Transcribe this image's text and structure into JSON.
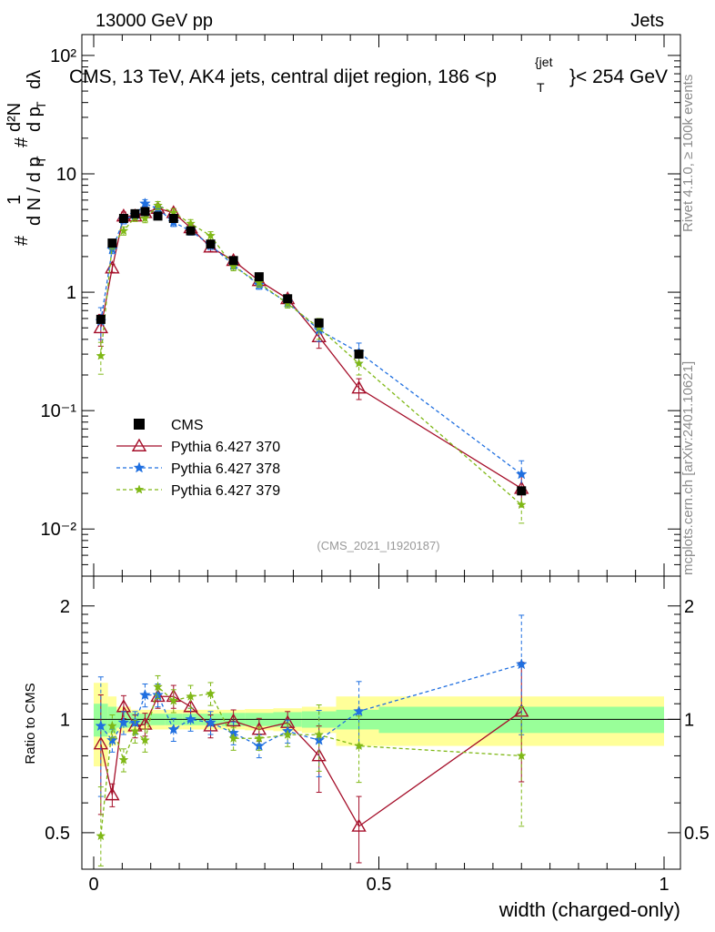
{
  "header": {
    "left": "13000 GeV pp",
    "right": "Jets"
  },
  "title": "CMS, 13 TeV, AK4 jets, central dijet region, 186 <p",
  "title_super": "{jet",
  "title_sub": "T",
  "title_tail": "}< 254 GeV",
  "ylabel": "# 1/dN/dpT # dpT d²N/dλ",
  "ylabel_parts": {
    "hash": "#",
    "one": "1",
    "dn": "d N / d p",
    "t": "T",
    "d2n": "d²N",
    "dpt": "d p",
    "dlambda": "dλ"
  },
  "side_rivet": "Rivet 4.1.0, ≥ 100k events",
  "side_mcplots": "mcplots.cern.ch [arXiv:2401.10621]",
  "watermark": "(CMS_2021_I1920187)",
  "ratio_ylabel": "Ratio to CMS",
  "xlabel": "width (charged-only)",
  "colors": {
    "cms": "#000000",
    "p370": "#a50f2a",
    "p378": "#1f6fe0",
    "p379": "#7fb816",
    "band_inner": "#99ff99",
    "band_outer": "#ffff99"
  },
  "chart_data": {
    "type": "scatter",
    "title": "CMS, 13 TeV, AK4 jets, central dijet region, 186 <pT{jet}< 254 GeV",
    "xlabel": "width (charged-only)",
    "ylabel": "1/dN/dpT dpT d²N/dλ",
    "xlim": [
      0,
      1
    ],
    "ylim": [
      0.004,
      150
    ],
    "yscale": "log",
    "ratio_ylim": [
      0.4,
      2.4
    ],
    "x_ticks": [
      "0",
      "0.5",
      "1"
    ],
    "x_tick_values": [
      0,
      0.5,
      1
    ],
    "y_ticks": [
      "10⁻²",
      "10⁻¹",
      "1",
      "10",
      "10²"
    ],
    "y_tick_values": [
      0.01,
      0.1,
      1,
      10,
      100
    ],
    "ratio_ticks": [
      "0.5",
      "1",
      "2"
    ],
    "ratio_tick_values": [
      0.5,
      1,
      2
    ],
    "x": [
      0.0125,
      0.0325,
      0.0525,
      0.0725,
      0.09,
      0.1125,
      0.14,
      0.17,
      0.205,
      0.245,
      0.29,
      0.34,
      0.395,
      0.465,
      0.75
    ],
    "bin_edges": [
      0,
      0.025,
      0.04,
      0.065,
      0.08,
      0.1,
      0.125,
      0.155,
      0.185,
      0.225,
      0.265,
      0.315,
      0.365,
      0.425,
      0.5,
      1.0
    ],
    "cms": [
      0.59,
      2.6,
      4.2,
      4.6,
      4.8,
      4.4,
      4.2,
      3.3,
      2.55,
      1.85,
      1.35,
      0.88,
      0.55,
      0.3,
      0.021
    ],
    "cms_band_inner": [
      0.1,
      0.08,
      0.05,
      0.04,
      0.035,
      0.035,
      0.035,
      0.035,
      0.035,
      0.04,
      0.04,
      0.045,
      0.05,
      0.06,
      0.08
    ],
    "cms_band_outer": [
      0.25,
      0.15,
      0.08,
      0.06,
      0.06,
      0.06,
      0.06,
      0.06,
      0.06,
      0.06,
      0.065,
      0.07,
      0.08,
      0.15,
      0.15
    ],
    "series": [
      {
        "name": "CMS",
        "style": "marker"
      },
      {
        "name": "Pythia 6.427 370",
        "values": [
          0.5,
          1.6,
          4.4,
          4.4,
          4.7,
          5.1,
          4.7,
          3.5,
          2.4,
          1.85,
          1.25,
          0.88,
          0.42,
          0.155,
          0.022
        ],
        "ratio": [
          0.86,
          0.63,
          1.08,
          0.96,
          0.97,
          1.15,
          1.15,
          1.08,
          0.96,
          0.99,
          0.94,
          0.98,
          0.8,
          0.52,
          1.05
        ]
      },
      {
        "name": "Pythia 6.427 378",
        "values": [
          0.57,
          2.3,
          4.1,
          4.5,
          5.6,
          5.1,
          3.9,
          3.3,
          2.5,
          1.7,
          1.15,
          0.82,
          0.48,
          0.31,
          0.029
        ],
        "ratio": [
          0.96,
          0.88,
          0.98,
          0.98,
          1.16,
          1.16,
          0.94,
          1.0,
          0.98,
          0.92,
          0.85,
          0.93,
          0.88,
          1.05,
          1.4
        ]
      },
      {
        "name": "Pythia 6.427 379",
        "values": [
          0.29,
          2.5,
          3.3,
          4.3,
          4.2,
          5.4,
          4.7,
          3.8,
          3.0,
          1.65,
          1.2,
          0.8,
          0.5,
          0.25,
          0.016
        ],
        "ratio": [
          0.49,
          0.96,
          0.78,
          0.93,
          0.88,
          1.22,
          1.12,
          1.15,
          1.17,
          0.89,
          0.89,
          0.91,
          0.91,
          0.85,
          0.8
        ]
      }
    ],
    "legend": [
      "CMS",
      "Pythia 6.427 370",
      "Pythia 6.427 378",
      "Pythia 6.427 379"
    ],
    "legend_position": "bottom-left"
  }
}
